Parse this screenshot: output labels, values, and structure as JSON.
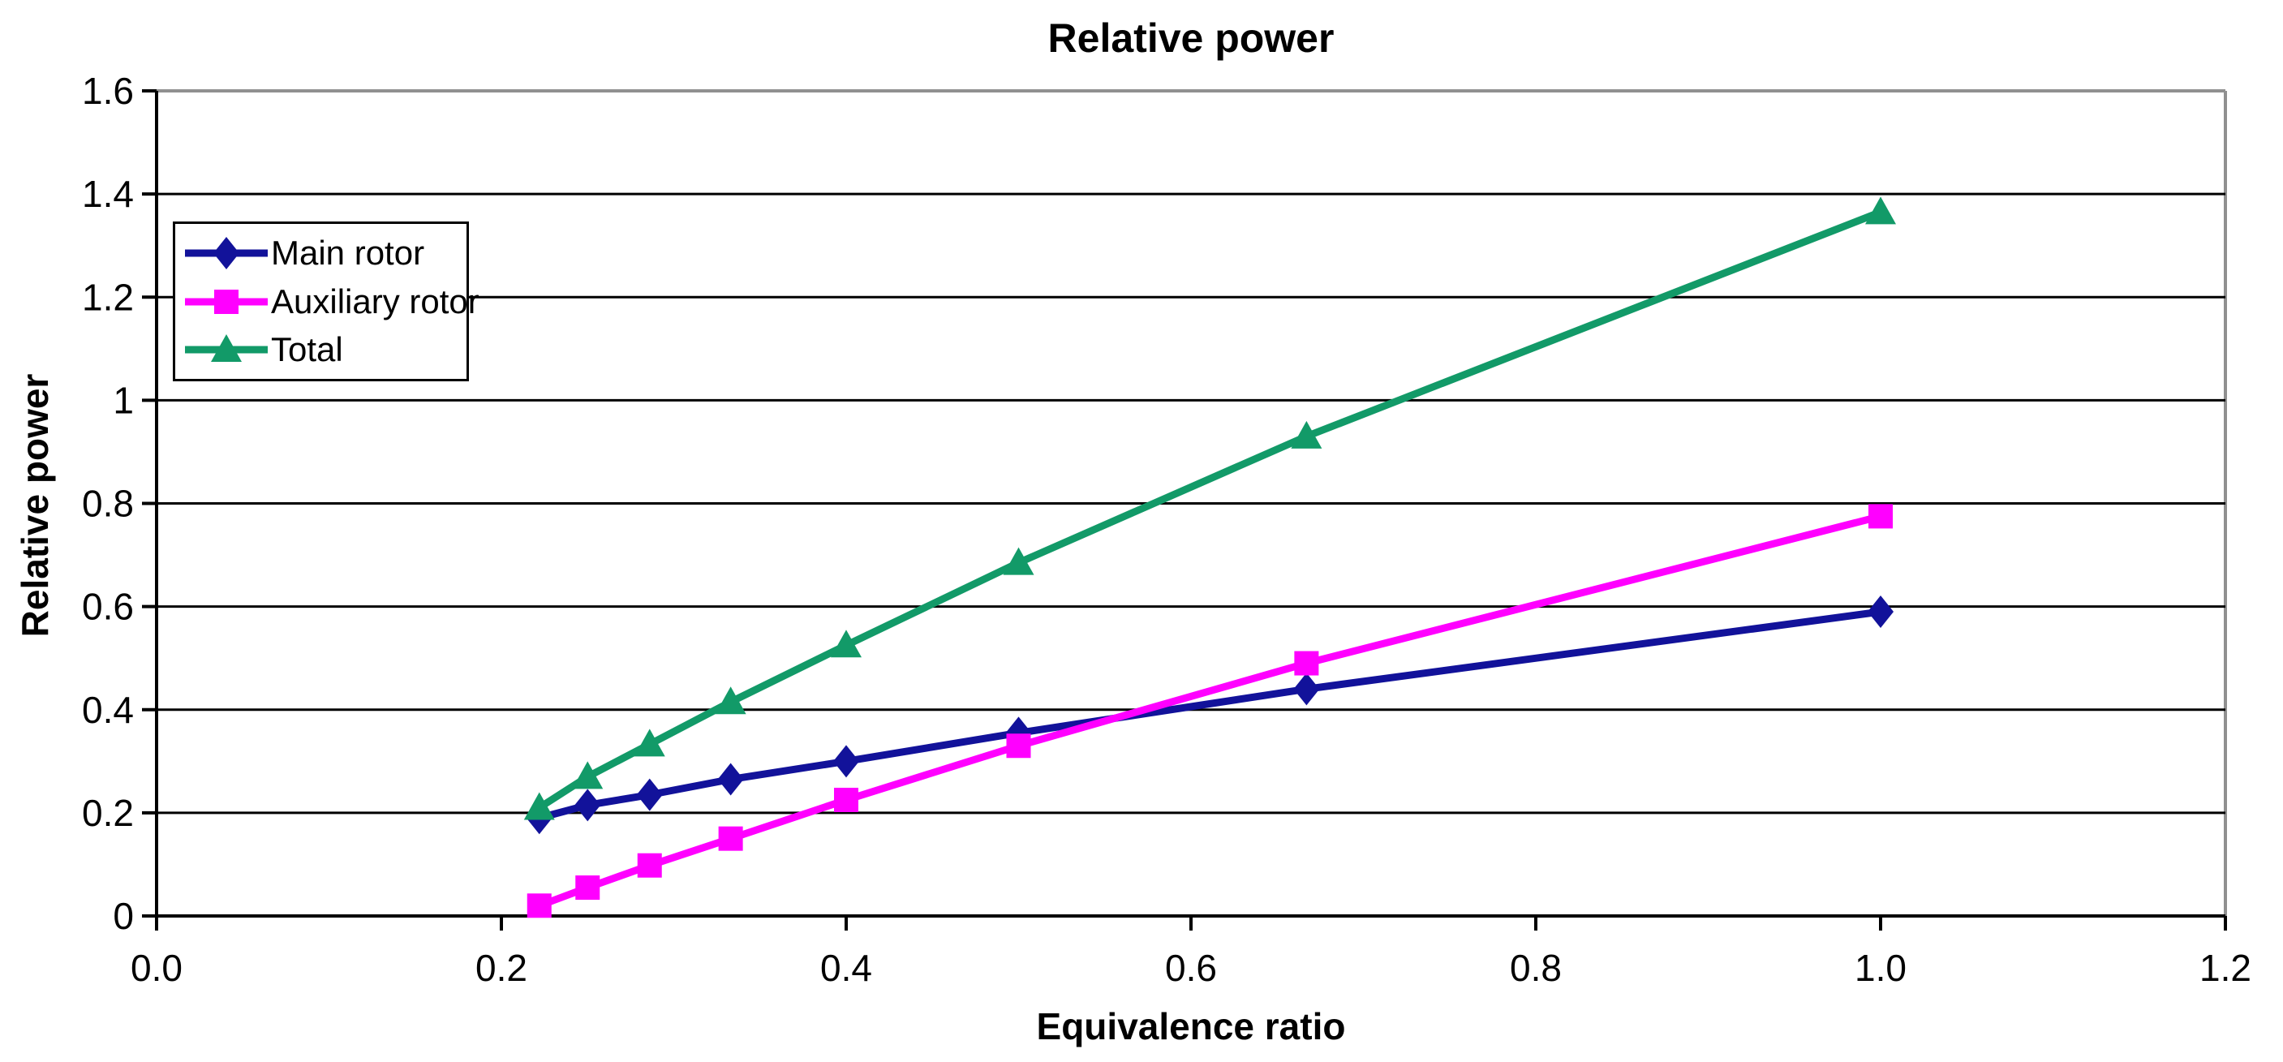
{
  "chart_data": {
    "type": "line",
    "title": "Relative power",
    "xlabel": "Equivalence ratio",
    "ylabel": "Relative power",
    "xlim": [
      0,
      1.2
    ],
    "ylim": [
      0,
      1.6
    ],
    "x_tick_labels": [
      "0.0",
      "0.2",
      "0.4",
      "0.6",
      "0.8",
      "1.0",
      "1.2"
    ],
    "x_tick_values": [
      0,
      0.2,
      0.4,
      0.6,
      0.8,
      1.0,
      1.2
    ],
    "y_tick_labels": [
      "0",
      "0.2",
      "0.4",
      "0.6",
      "0.8",
      "1",
      "1.2",
      "1.4",
      "1.6"
    ],
    "y_tick_values": [
      0,
      0.2,
      0.4,
      0.6,
      0.8,
      1.0,
      1.2,
      1.4,
      1.6
    ],
    "grid": "horizontal-black",
    "plot_border_color": "#909090",
    "axis_color": "#000000",
    "legend_position": "upper-left-inside",
    "x": [
      0.222,
      0.25,
      0.286,
      0.333,
      0.4,
      0.5,
      0.667,
      1.0
    ],
    "series": [
      {
        "name": "Main rotor",
        "marker": "diamond",
        "color": "#12129A",
        "values": [
          0.19,
          0.215,
          0.235,
          0.265,
          0.3,
          0.355,
          0.44,
          0.59
        ]
      },
      {
        "name": "Auxiliary rotor",
        "marker": "square",
        "color": "#FF00FF",
        "values": [
          0.02,
          0.055,
          0.098,
          0.15,
          0.225,
          0.33,
          0.49,
          0.775
        ]
      },
      {
        "name": "Total",
        "marker": "triangle",
        "color": "#129A68",
        "values": [
          0.21,
          0.27,
          0.333,
          0.415,
          0.525,
          0.685,
          0.93,
          1.365
        ]
      }
    ]
  }
}
